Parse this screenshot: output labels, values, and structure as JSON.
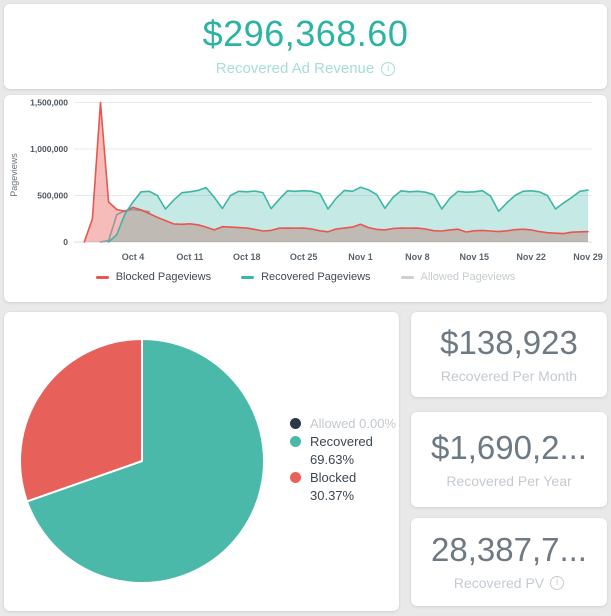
{
  "theme": {
    "teal": "#2db3a4",
    "teal_light": "#a7ddd6",
    "red": "#e8574f",
    "dark_navy": "#2a3948",
    "value_gray": "#6d7983",
    "label_gray": "#c4cad0",
    "page_bg": "#e9e9e9"
  },
  "revenue_card": {
    "value": "$296,368.60",
    "label": "Recovered Ad Revenue",
    "info_icon": "info"
  },
  "stats_cards": [
    {
      "value": "$138,923",
      "label": "Recovered Per Month"
    },
    {
      "value": "$1,690,2...",
      "label": "Recovered Per Year"
    },
    {
      "value": "28,387,7...",
      "label": "Recovered PV",
      "info_icon": "info"
    }
  ],
  "chart_data": [
    {
      "type": "area",
      "title": "Pageviews over time",
      "ylabel": "Pageviews",
      "ylim": [
        0,
        1550000
      ],
      "grid": true,
      "legend_position": "bottom",
      "y_ticks": [
        {
          "v": 0,
          "label": "0"
        },
        {
          "v": 500000,
          "label": "500,000"
        },
        {
          "v": 1000000,
          "label": "1,000,000"
        },
        {
          "v": 1500000,
          "label": "1,500,000"
        }
      ],
      "x_ticks": [
        {
          "day": 5,
          "label": "Oct 4"
        },
        {
          "day": 12,
          "label": "Oct 11"
        },
        {
          "day": 19,
          "label": "Oct 18"
        },
        {
          "day": 26,
          "label": "Oct 25"
        },
        {
          "day": 33,
          "label": "Nov 1"
        },
        {
          "day": 40,
          "label": "Nov 8"
        },
        {
          "day": 47,
          "label": "Nov 15"
        },
        {
          "day": 54,
          "label": "Nov 22"
        },
        {
          "day": 61,
          "label": "Nov 29"
        }
      ],
      "day_start": -1,
      "series": [
        {
          "name": "Blocked Pageviews",
          "color": "#e8574f",
          "area": true,
          "fill_opacity": 0.4,
          "dimmed": false,
          "values": [
            0,
            250000,
            1500000,
            430000,
            350000,
            330000,
            372000,
            345000,
            305000,
            265000,
            230000,
            195000,
            190000,
            196000,
            185000,
            160000,
            130000,
            165000,
            160000,
            155000,
            150000,
            135000,
            118000,
            125000,
            148000,
            150000,
            148000,
            150000,
            140000,
            120000,
            110000,
            140000,
            150000,
            160000,
            190000,
            155000,
            135000,
            130000,
            145000,
            150000,
            148000,
            150000,
            140000,
            122000,
            118000,
            130000,
            138000,
            108000,
            120000,
            125000,
            118000,
            112000,
            120000,
            132000,
            138000,
            130000,
            112000,
            100000,
            95000,
            90000,
            105000,
            110000,
            112000
          ]
        },
        {
          "name": "Recovered Pageviews",
          "color": "#3eb6a7",
          "area": true,
          "fill_opacity": 0.3,
          "dimmed": false,
          "values": [
            null,
            null,
            null,
            0,
            80000,
            300000,
            430000,
            540000,
            545000,
            500000,
            355000,
            450000,
            530000,
            540000,
            555000,
            585000,
            480000,
            360000,
            500000,
            545000,
            540000,
            548000,
            530000,
            358000,
            460000,
            550000,
            545000,
            552000,
            545000,
            520000,
            355000,
            470000,
            555000,
            545000,
            588000,
            560000,
            510000,
            362000,
            480000,
            550000,
            540000,
            545000,
            535000,
            510000,
            355000,
            470000,
            545000,
            535000,
            540000,
            552000,
            495000,
            330000,
            420000,
            500000,
            545000,
            550000,
            540000,
            500000,
            355000,
            420000,
            480000,
            545000,
            558000
          ]
        },
        {
          "name": "Allowed Pageviews",
          "color": "#94999d",
          "area": false,
          "fill_opacity": 0,
          "dimmed": true,
          "values": [
            null,
            null,
            0,
            15000,
            295000,
            335000,
            348000,
            340000,
            325000,
            null,
            null,
            null,
            null,
            null,
            null,
            null,
            null,
            null,
            null,
            null,
            null,
            null,
            null,
            null,
            null,
            null,
            null,
            null,
            null,
            null,
            null,
            null,
            null,
            null,
            null,
            null,
            null,
            null,
            null,
            null,
            null,
            null,
            null,
            null,
            null,
            null,
            null,
            null,
            null,
            null,
            null,
            null,
            null,
            null,
            null,
            null,
            null,
            null,
            null,
            null,
            null,
            null,
            null
          ]
        }
      ]
    },
    {
      "type": "pie",
      "slices": [
        {
          "label": "Allowed",
          "pct": 0.0,
          "color": "#2a3948",
          "dimmed": true,
          "legend_lines": [
            "Allowed 0.00%"
          ]
        },
        {
          "label": "Recovered",
          "pct": 69.63,
          "color": "#4bb9a9",
          "dimmed": false,
          "legend_lines": [
            "Recovered",
            "69.63%"
          ]
        },
        {
          "label": "Blocked",
          "pct": 30.37,
          "color": "#e8605a",
          "dimmed": false,
          "legend_lines": [
            "Blocked",
            "30.37%"
          ]
        }
      ]
    }
  ]
}
